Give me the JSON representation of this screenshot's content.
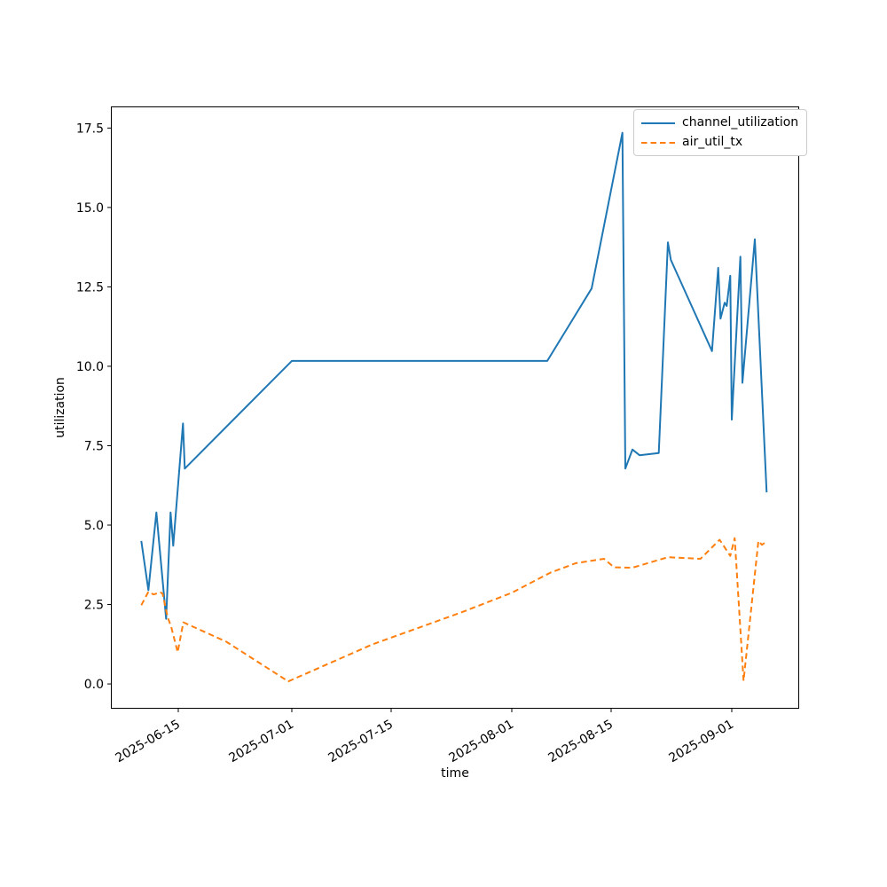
{
  "figure": {
    "background": "#ffffff",
    "text_color": "#000000",
    "spine_color": "#000000"
  },
  "chart_data": {
    "type": "line",
    "title": "",
    "xlabel": "time",
    "ylabel": "utilization",
    "grid": false,
    "legend": {
      "position": "upper right",
      "entries": [
        "channel_utilization",
        "air_util_tx"
      ]
    },
    "x_axis": {
      "type": "date",
      "epoch": "2025-06-15T00:00:00",
      "lim_days": [
        -9.5,
        87.5
      ],
      "ticks": [
        {
          "label": "2025-06-15",
          "day": 0
        },
        {
          "label": "2025-07-01",
          "day": 16
        },
        {
          "label": "2025-07-15",
          "day": 30
        },
        {
          "label": "2025-08-01",
          "day": 47
        },
        {
          "label": "2025-08-15",
          "day": 61
        },
        {
          "label": "2025-09-01",
          "day": 78
        }
      ],
      "tick_rotation_deg": 30
    },
    "y_axis": {
      "lim": [
        -0.78,
        18.18
      ],
      "ticks": [
        {
          "label": "0.0",
          "value": 0.0
        },
        {
          "label": "2.5",
          "value": 2.5
        },
        {
          "label": "5.0",
          "value": 5.0
        },
        {
          "label": "7.5",
          "value": 7.5
        },
        {
          "label": "10.0",
          "value": 10.0
        },
        {
          "label": "12.5",
          "value": 12.5
        },
        {
          "label": "15.0",
          "value": 15.0
        },
        {
          "label": "17.5",
          "value": 17.5
        }
      ]
    },
    "series": [
      {
        "name": "channel_utilization",
        "color": "#1f77b4",
        "style": "solid",
        "points": [
          [
            "2025-06-09T19:00",
            4.5
          ],
          [
            "2025-06-10T19:00",
            2.95
          ],
          [
            "2025-06-11T22:00",
            5.4
          ],
          [
            "2025-06-13T07:00",
            2.05
          ],
          [
            "2025-06-13T22:00",
            5.4
          ],
          [
            "2025-06-14T07:00",
            4.35
          ],
          [
            "2025-06-15T16:00",
            8.2
          ],
          [
            "2025-06-15T22:00",
            6.78
          ],
          [
            "2025-07-01T00:00",
            10.17
          ],
          [
            "2025-08-06T00:00",
            10.17
          ],
          [
            "2025-08-12T06:00",
            12.45
          ],
          [
            "2025-08-16T14:00",
            17.35
          ],
          [
            "2025-08-17T00:00",
            6.78
          ],
          [
            "2025-08-18T00:00",
            7.38
          ],
          [
            "2025-08-19T00:00",
            7.2
          ],
          [
            "2025-08-21T17:00",
            7.27
          ],
          [
            "2025-08-23T00:00",
            13.9
          ],
          [
            "2025-08-23T10:00",
            13.35
          ],
          [
            "2025-08-29T05:00",
            10.48
          ],
          [
            "2025-08-30T02:00",
            13.1
          ],
          [
            "2025-08-30T10:00",
            11.5
          ],
          [
            "2025-08-31T00:00",
            12.0
          ],
          [
            "2025-08-31T07:00",
            11.9
          ],
          [
            "2025-08-31T19:00",
            12.85
          ],
          [
            "2025-09-01T00:00",
            8.32
          ],
          [
            "2025-09-02T05:00",
            13.45
          ],
          [
            "2025-09-02T12:00",
            9.48
          ],
          [
            "2025-09-04T06:00",
            14.0
          ],
          [
            "2025-09-05T22:00",
            6.03
          ]
        ]
      },
      {
        "name": "air_util_tx",
        "color": "#ff7f0e",
        "style": "dashed",
        "points": [
          [
            "2025-06-09T19:00",
            2.48
          ],
          [
            "2025-06-10T19:00",
            2.9
          ],
          [
            "2025-06-11T12:00",
            2.82
          ],
          [
            "2025-06-12T12:00",
            2.88
          ],
          [
            "2025-06-12T19:00",
            2.84
          ],
          [
            "2025-06-13T12:00",
            2.1
          ],
          [
            "2025-06-14T00:00",
            1.8
          ],
          [
            "2025-06-14T22:00",
            1.0
          ],
          [
            "2025-06-15T17:00",
            1.94
          ],
          [
            "2025-06-21T18:00",
            1.33
          ],
          [
            "2025-06-30T12:00",
            0.08
          ],
          [
            "2025-07-12T10:00",
            1.25
          ],
          [
            "2025-07-25T00:00",
            2.26
          ],
          [
            "2025-08-01T00:00",
            2.87
          ],
          [
            "2025-08-06T10:00",
            3.5
          ],
          [
            "2025-08-10T00:00",
            3.8
          ],
          [
            "2025-08-14T00:00",
            3.94
          ],
          [
            "2025-08-15T10:00",
            3.67
          ],
          [
            "2025-08-18T00:00",
            3.66
          ],
          [
            "2025-08-23T00:00",
            3.99
          ],
          [
            "2025-08-27T14:00",
            3.94
          ],
          [
            "2025-08-30T07:00",
            4.54
          ],
          [
            "2025-08-31T19:00",
            4.03
          ],
          [
            "2025-09-01T10:00",
            4.59
          ],
          [
            "2025-09-02T16:00",
            0.1
          ],
          [
            "2025-09-04T18:00",
            4.5
          ],
          [
            "2025-09-05T06:00",
            4.38
          ],
          [
            "2025-09-05T17:00",
            4.45
          ]
        ]
      }
    ]
  }
}
